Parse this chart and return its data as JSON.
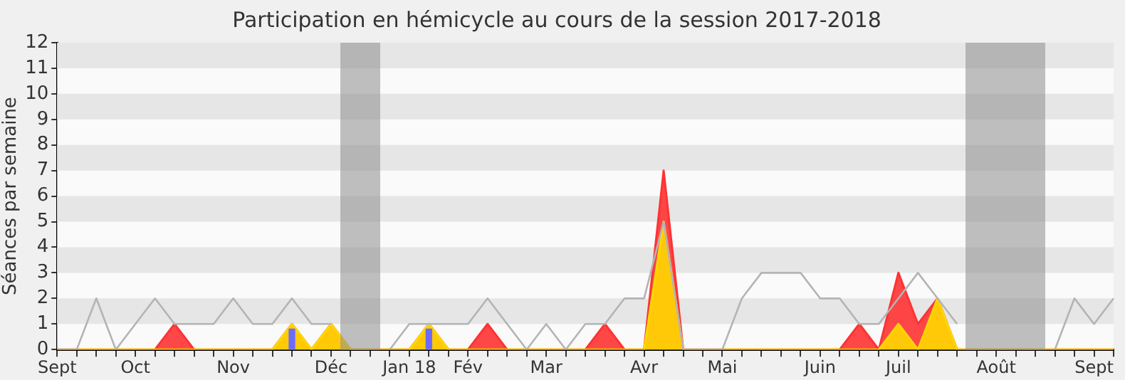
{
  "chart_data": {
    "type": "line",
    "title": "Participation en hémicycle au cours de la session 2017-2018",
    "ylabel": "Séances par semaine",
    "categories": [
      "Sept",
      null,
      null,
      null,
      "Oct",
      null,
      null,
      null,
      null,
      "Nov",
      null,
      null,
      null,
      null,
      "Déc",
      null,
      null,
      null,
      "Jan 18",
      null,
      null,
      "Fév",
      null,
      null,
      null,
      "Mar",
      null,
      null,
      null,
      null,
      "Avr",
      null,
      null,
      null,
      "Mai",
      null,
      null,
      null,
      null,
      "Juin",
      null,
      null,
      null,
      "Juil",
      null,
      null,
      null,
      null,
      "Août",
      null,
      null,
      null,
      null,
      "Sept",
      null
    ],
    "series": [
      {
        "type": "area",
        "color": "#ff3333",
        "values": [
          0,
          0,
          0,
          0,
          0,
          0,
          1,
          0,
          0,
          0,
          0,
          0,
          1,
          0,
          1,
          0,
          0,
          0,
          0,
          1,
          0,
          0,
          1,
          0,
          0,
          0,
          0,
          0,
          1,
          0,
          0,
          7,
          0,
          0,
          0,
          0,
          0,
          0,
          0,
          0,
          0,
          1,
          0,
          3,
          1,
          2,
          0,
          0,
          0,
          0,
          0,
          0,
          0,
          0,
          0
        ]
      },
      {
        "type": "area",
        "color": "#ffd700",
        "values": [
          0,
          0,
          0,
          0,
          0,
          0,
          0,
          0,
          0,
          0,
          0,
          0,
          1,
          0,
          1,
          0,
          0,
          0,
          0,
          1,
          0,
          0,
          0,
          0,
          0,
          0,
          0,
          0,
          0,
          0,
          0,
          5,
          0,
          0,
          0,
          0,
          0,
          0,
          0,
          0,
          0,
          0,
          0,
          1,
          0,
          2,
          0,
          0,
          0,
          0,
          0,
          0,
          0,
          0,
          0
        ]
      },
      {
        "color": "#b4b4b4",
        "values": [
          0,
          0,
          2,
          0,
          1,
          2,
          1,
          1,
          1,
          2,
          1,
          1,
          2,
          1,
          1,
          null,
          null,
          0,
          1,
          1,
          1,
          1,
          2,
          1,
          0,
          1,
          0,
          1,
          1,
          2,
          2,
          5,
          0,
          0,
          0,
          2,
          3,
          3,
          3,
          2,
          2,
          1,
          1,
          2,
          3,
          2,
          1,
          null,
          null,
          null,
          null,
          0,
          2,
          1,
          2
        ]
      },
      {
        "type": "bar",
        "color": "#6b6bff",
        "values": [
          null,
          null,
          null,
          null,
          null,
          null,
          null,
          null,
          null,
          null,
          null,
          null,
          0.8,
          null,
          null,
          null,
          null,
          null,
          null,
          0.8,
          null,
          null,
          null,
          null,
          null,
          null,
          null,
          null,
          null,
          null,
          null,
          null,
          null,
          null,
          null,
          null,
          null,
          null,
          null,
          null,
          null,
          null,
          null,
          null,
          null,
          null,
          null,
          null,
          null,
          null,
          null,
          null,
          null,
          null,
          null
        ]
      }
    ],
    "ylim": [
      0,
      12
    ],
    "yticks": [
      0,
      1,
      2,
      3,
      4,
      5,
      6,
      7,
      8,
      9,
      10,
      11,
      12
    ],
    "legend": false
  }
}
